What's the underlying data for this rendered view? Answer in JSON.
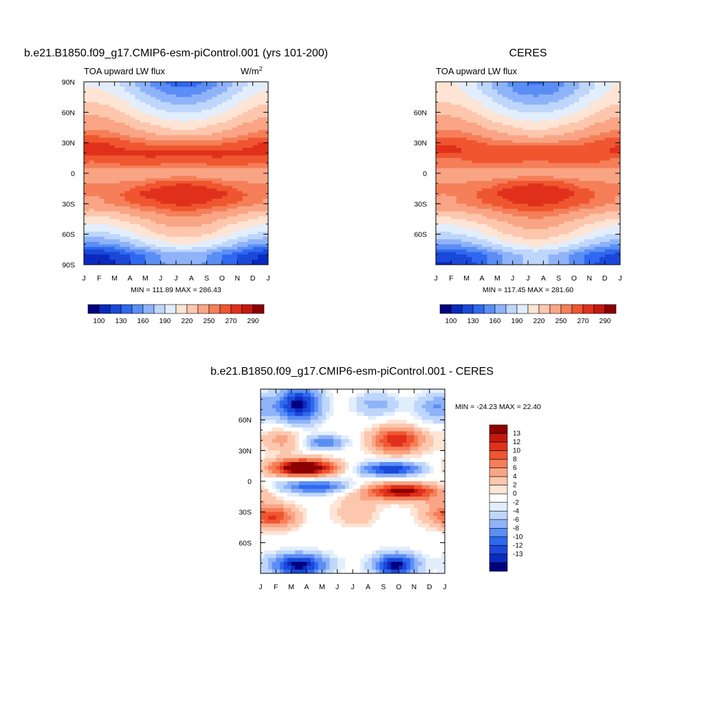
{
  "chart_data": [
    {
      "type": "heatmap",
      "title": "b.e21.B1850.f09_g17.CMIP6-esm-piControl.001 (yrs 101-200)",
      "left_label": "TOA upward LW flux",
      "units": "W/m",
      "units_sup": "2",
      "x_tick_labels": [
        "J",
        "F",
        "M",
        "A",
        "M",
        "J",
        "J",
        "A",
        "S",
        "O",
        "N",
        "D",
        "J"
      ],
      "y_tick_labels": [
        "90N",
        "60N",
        "30N",
        "0",
        "30S",
        "60S",
        "90S"
      ],
      "y_tick_values": [
        90,
        60,
        30,
        0,
        -30,
        -60,
        -90
      ],
      "ylim": [
        -90,
        90
      ],
      "stats": "MIN = 111.89 MAX = 286.43",
      "colorbar_labels": [
        "100",
        "130",
        "160",
        "190",
        "220",
        "250",
        "270",
        "290"
      ],
      "colorbar_colors": [
        "#00007f",
        "#0a2abf",
        "#1a48d8",
        "#2f68f0",
        "#5b8ef5",
        "#8fb3f8",
        "#bfd6fb",
        "#e3eefd",
        "#fde4d4",
        "#fcc7ad",
        "#f9a585",
        "#f57f59",
        "#ef5630",
        "#e0301b",
        "#c4180f",
        "#8b0000"
      ],
      "zonal_profile": {
        "lat": [
          90,
          80,
          70,
          60,
          50,
          40,
          30,
          20,
          10,
          0,
          -10,
          -20,
          -30,
          -40,
          -50,
          -60,
          -70,
          -80,
          -90
        ],
        "value": [
          170,
          180,
          195,
          210,
          225,
          240,
          260,
          272,
          265,
          238,
          255,
          270,
          262,
          240,
          222,
          205,
          180,
          140,
          135
        ]
      }
    },
    {
      "type": "heatmap",
      "title": "CERES",
      "left_label": "TOA upward LW flux",
      "x_tick_labels": [
        "J",
        "F",
        "M",
        "A",
        "M",
        "J",
        "J",
        "A",
        "S",
        "O",
        "N",
        "D",
        "J"
      ],
      "y_tick_labels": [
        "60N",
        "30N",
        "0",
        "30S",
        "60S"
      ],
      "y_tick_values": [
        60,
        30,
        0,
        -30,
        -60
      ],
      "ylim": [
        -90,
        90
      ],
      "stats": "MIN = 117.45 MAX = 281.60",
      "colorbar_labels": [
        "100",
        "130",
        "160",
        "190",
        "220",
        "250",
        "270",
        "290"
      ],
      "colorbar_colors": [
        "#00007f",
        "#0a2abf",
        "#1a48d8",
        "#2f68f0",
        "#5b8ef5",
        "#8fb3f8",
        "#bfd6fb",
        "#e3eefd",
        "#fde4d4",
        "#fcc7ad",
        "#f9a585",
        "#f57f59",
        "#ef5630",
        "#e0301b",
        "#c4180f",
        "#8b0000"
      ],
      "zonal_profile": {
        "lat": [
          90,
          80,
          70,
          60,
          50,
          40,
          30,
          20,
          10,
          0,
          -10,
          -20,
          -30,
          -40,
          -50,
          -60,
          -70,
          -80,
          -90
        ],
        "value": [
          175,
          182,
          195,
          210,
          225,
          240,
          258,
          268,
          262,
          240,
          255,
          268,
          262,
          242,
          224,
          208,
          185,
          150,
          145
        ]
      }
    },
    {
      "type": "heatmap",
      "title": "b.e21.B1850.f09_g17.CMIP6-esm-piControl.001 - CERES",
      "x_tick_labels": [
        "J",
        "F",
        "M",
        "A",
        "M",
        "J",
        "J",
        "A",
        "S",
        "O",
        "N",
        "D",
        "J"
      ],
      "y_tick_labels": [
        "60N",
        "30N",
        "0",
        "30S",
        "60S"
      ],
      "y_tick_values": [
        60,
        30,
        0,
        -30,
        -60
      ],
      "ylim": [
        -90,
        90
      ],
      "stats": "MIN = -24.23 MAX =  22.40",
      "colorbar_labels": [
        "13",
        "12",
        "10",
        "8",
        "6",
        "4",
        "2",
        "0",
        "-2",
        "-4",
        "-6",
        "-8",
        "-10",
        "-12",
        "-13"
      ],
      "colorbar_colors": [
        "#8b0000",
        "#c4180f",
        "#e0301b",
        "#ef5630",
        "#f57f59",
        "#f9a585",
        "#fcc7ad",
        "#fde4d4",
        "#ffffff",
        "#e3eefd",
        "#bfd6fb",
        "#8fb3f8",
        "#5b8ef5",
        "#2f68f0",
        "#1a48d8",
        "#0a2abf",
        "#00007f"
      ],
      "features": [
        {
          "month": 2.5,
          "lat": 75,
          "value": -14,
          "sx": 1.0,
          "sy": 12
        },
        {
          "month": 2.8,
          "lat": 13,
          "value": 18,
          "sx": 1.5,
          "sy": 6
        },
        {
          "month": 3.5,
          "lat": -5,
          "value": -10,
          "sx": 1.7,
          "sy": 5
        },
        {
          "month": 8.9,
          "lat": 40,
          "value": 12,
          "sx": 1.2,
          "sy": 9
        },
        {
          "month": 8.5,
          "lat": 12,
          "value": -12,
          "sx": 1.5,
          "sy": 5
        },
        {
          "month": 9.2,
          "lat": -10,
          "value": 14,
          "sx": 1.8,
          "sy": 6
        },
        {
          "month": 2.5,
          "lat": -82,
          "value": -14,
          "sx": 1.3,
          "sy": 8
        },
        {
          "month": 8.8,
          "lat": -82,
          "value": -14,
          "sx": 1.0,
          "sy": 8
        },
        {
          "month": 1.0,
          "lat": -35,
          "value": 9,
          "sx": 1.0,
          "sy": 8
        },
        {
          "month": 1.5,
          "lat": 40,
          "value": 5,
          "sx": 1.0,
          "sy": 8
        },
        {
          "month": 4.1,
          "lat": 38,
          "value": -8,
          "sx": 1.0,
          "sy": 5
        },
        {
          "month": 6.2,
          "lat": -30,
          "value": 4,
          "sx": 1.0,
          "sy": 10
        },
        {
          "month": 11.5,
          "lat": -30,
          "value": 4,
          "sx": 1.0,
          "sy": 10
        },
        {
          "month": 7.5,
          "lat": 75,
          "value": -5,
          "sx": 1.0,
          "sy": 8
        },
        {
          "month": 11.5,
          "lat": 72,
          "value": -6,
          "sx": 1.0,
          "sy": 10
        }
      ]
    }
  ]
}
